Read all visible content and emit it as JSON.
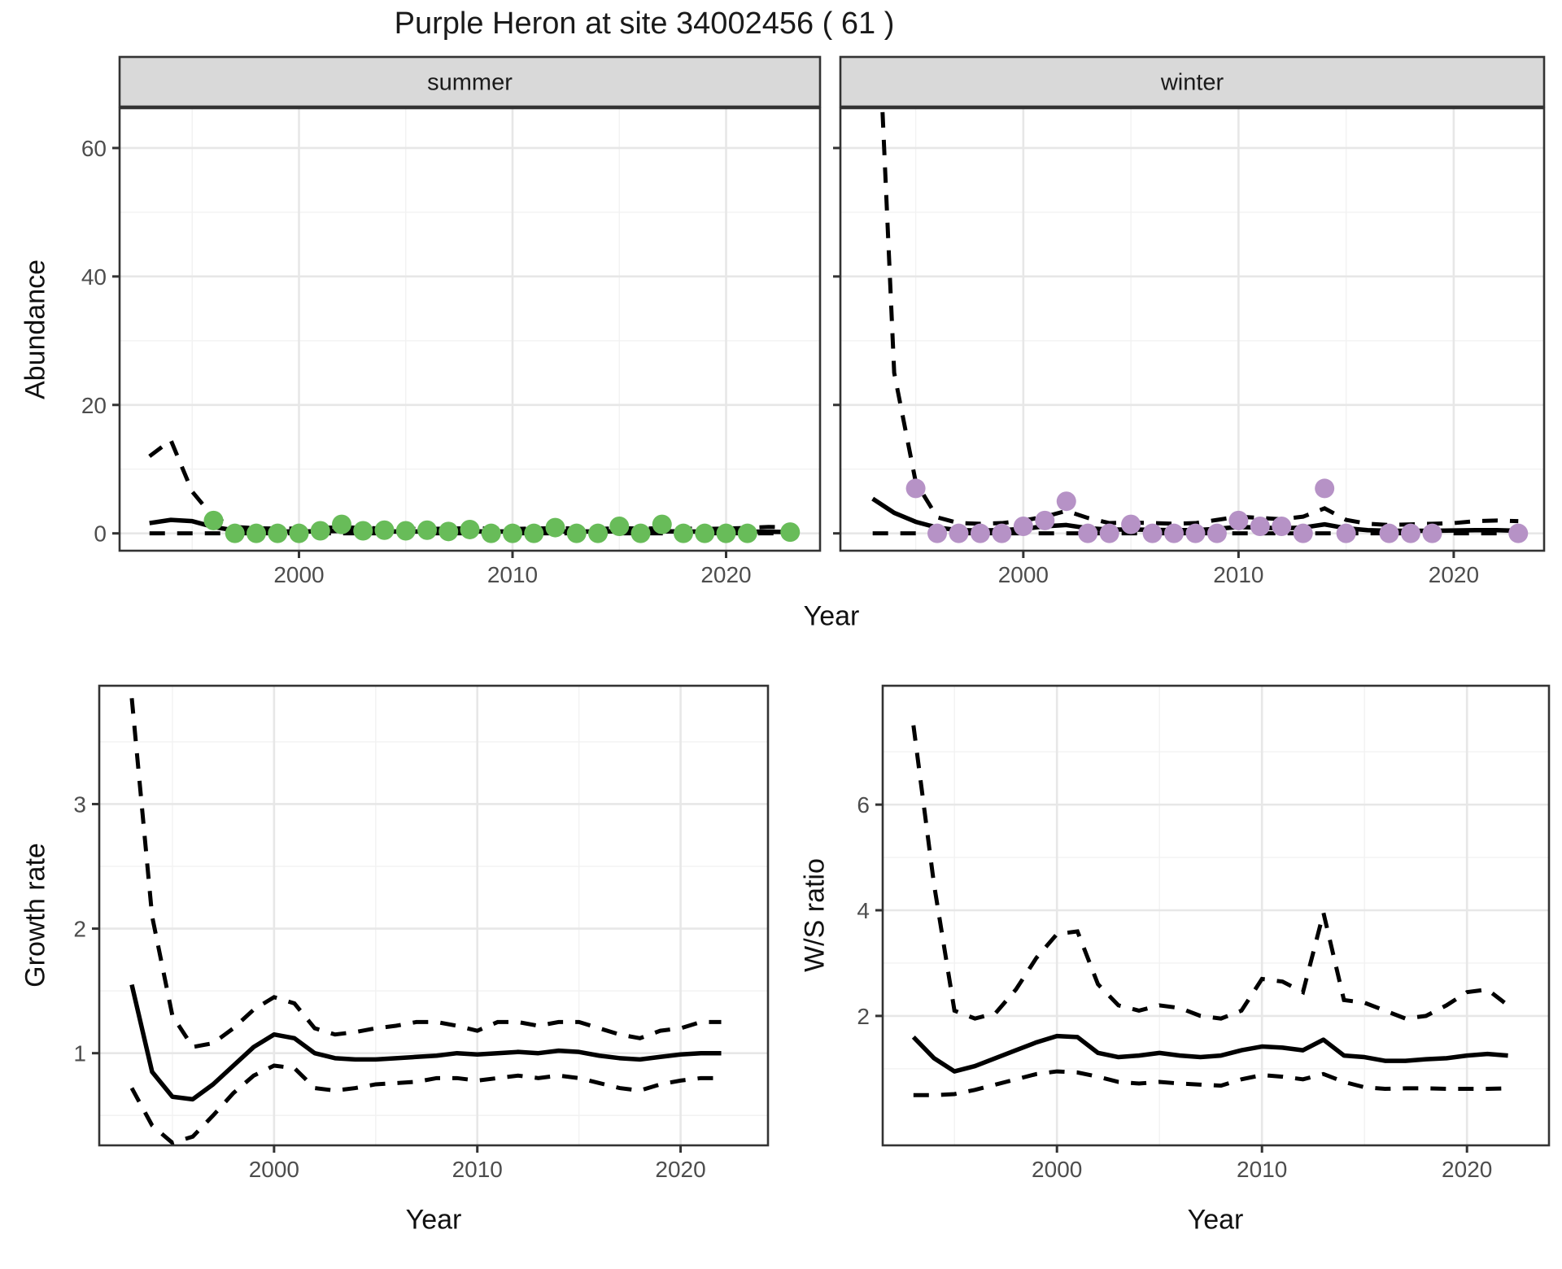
{
  "title": "Purple Heron at site 34002456 ( 61 )",
  "axis_titles": {
    "abundance_y": "Abundance",
    "top_x": "Year",
    "growth_y": "Growth rate",
    "growth_x": "Year",
    "ws_y": "W/S ratio",
    "ws_x": "Year"
  },
  "colors": {
    "summer_point": "#68bc59",
    "winter_point": "#b692c6",
    "line": "#000000",
    "strip_bg": "#d9d9d9",
    "panel_border": "#333333",
    "grid_major": "#e7e7e7",
    "grid_minor": "#f2f2f2",
    "tick_text": "#4d4d4d",
    "panel_bg": "#ffffff"
  },
  "chart_data": {
    "type": "line",
    "title": "Purple Heron at site 34002456 ( 61 )",
    "note": "Four panels: faceted abundance (summer/winter) with observed points, model fit (solid) and dashed 95% CI; growth rate panel; winter/summer ratio panel. Grid on, no legend.",
    "panels": [
      {
        "id": "summer",
        "strip_label": "summer",
        "ylabel": "Abundance",
        "xlim": [
          1991.6,
          2024.4
        ],
        "ylim": [
          -2.7,
          66.2
        ],
        "xticks": [
          2000,
          2010,
          2020
        ],
        "xminor": [
          1995,
          2005,
          2015
        ],
        "yticks": [
          0,
          20,
          40,
          60
        ],
        "yminor": [
          10,
          30,
          50
        ],
        "show_y_tick_labels": true,
        "point_color": "#68bc59",
        "years": [
          1993,
          1994,
          1995,
          1996,
          1997,
          1998,
          1999,
          2000,
          2001,
          2002,
          2003,
          2004,
          2005,
          2006,
          2007,
          2008,
          2009,
          2010,
          2011,
          2012,
          2013,
          2014,
          2015,
          2016,
          2017,
          2018,
          2019,
          2020,
          2021,
          2022,
          2023
        ],
        "fit": [
          1.6,
          2.1,
          1.9,
          1.0,
          0.45,
          0.3,
          0.3,
          0.3,
          0.32,
          0.38,
          0.32,
          0.3,
          0.3,
          0.3,
          0.3,
          0.32,
          0.3,
          0.3,
          0.3,
          0.32,
          0.3,
          0.3,
          0.32,
          0.3,
          0.32,
          0.3,
          0.28,
          0.28,
          0.28,
          0.25,
          0.22
        ],
        "upper": [
          12,
          14.5,
          6.5,
          2.5,
          1.0,
          0.8,
          0.75,
          0.75,
          0.85,
          0.95,
          0.85,
          0.75,
          0.7,
          0.7,
          0.75,
          0.8,
          0.75,
          0.7,
          0.75,
          0.8,
          0.75,
          0.7,
          0.8,
          0.75,
          0.8,
          0.75,
          0.7,
          0.75,
          0.85,
          1.0,
          0.95
        ],
        "lower": [
          0,
          0,
          0,
          0,
          0,
          0,
          0,
          0,
          0,
          0,
          0,
          0,
          0,
          0,
          0,
          0,
          0,
          0,
          0,
          0,
          0,
          0,
          0,
          0,
          0,
          0,
          0,
          0,
          0,
          0,
          0
        ],
        "obs": [
          null,
          null,
          null,
          2,
          0,
          0,
          0,
          0,
          0.4,
          1.4,
          0.4,
          0.5,
          0.4,
          0.5,
          0.3,
          0.6,
          0,
          0,
          0,
          0.9,
          0,
          0,
          1.1,
          0,
          1.4,
          0,
          0,
          0,
          0,
          null,
          0.2
        ]
      },
      {
        "id": "winter",
        "strip_label": "winter",
        "ylabel": "Abundance",
        "xlim": [
          1991.5,
          2024.2
        ],
        "ylim": [
          -2.7,
          66.2
        ],
        "xticks": [
          2000,
          2010,
          2020
        ],
        "xminor": [
          1995,
          2005,
          2015
        ],
        "yticks": [
          0,
          20,
          40,
          60
        ],
        "yminor": [
          10,
          30,
          50
        ],
        "show_y_tick_labels": false,
        "point_color": "#b692c6",
        "years": [
          1993,
          1994,
          1995,
          1996,
          1997,
          1998,
          1999,
          2000,
          2001,
          2002,
          2003,
          2004,
          2005,
          2006,
          2007,
          2008,
          2009,
          2010,
          2011,
          2012,
          2013,
          2014,
          2015,
          2016,
          2017,
          2018,
          2019,
          2020,
          2021,
          2022,
          2023
        ],
        "fit": [
          5.4,
          3.2,
          1.8,
          0.9,
          0.5,
          0.45,
          0.5,
          0.7,
          1.1,
          1.3,
          0.8,
          0.6,
          0.6,
          0.55,
          0.5,
          0.5,
          0.7,
          1.0,
          0.9,
          0.8,
          0.9,
          1.4,
          0.8,
          0.5,
          0.4,
          0.4,
          0.4,
          0.45,
          0.5,
          0.5,
          0.4
        ],
        "upper": [
          100,
          25,
          8,
          2.5,
          1.6,
          1.5,
          1.6,
          2.0,
          2.6,
          3.5,
          2.4,
          1.6,
          1.7,
          1.6,
          1.5,
          1.6,
          2.1,
          2.6,
          2.4,
          2.2,
          2.6,
          3.9,
          2.1,
          1.5,
          1.3,
          1.4,
          1.5,
          1.6,
          1.9,
          2.0,
          1.9
        ],
        "lower": [
          0,
          0,
          0,
          0,
          0,
          0,
          0,
          0,
          0,
          0,
          0,
          0,
          0,
          0,
          0,
          0,
          0,
          0,
          0,
          0,
          0,
          0,
          0,
          0,
          0,
          0,
          0,
          0,
          0,
          0,
          0
        ],
        "obs": [
          null,
          null,
          7,
          0,
          0,
          0,
          0,
          1.1,
          2,
          5,
          0,
          0,
          1.4,
          0,
          0,
          0,
          0,
          2,
          1.1,
          1.1,
          0,
          7,
          0,
          null,
          0,
          0,
          0,
          null,
          null,
          null,
          0
        ]
      },
      {
        "id": "growth",
        "strip_label": null,
        "ylabel": "Growth rate",
        "xlim": [
          1991.4,
          2024.3
        ],
        "ylim": [
          0.26,
          3.95
        ],
        "xticks": [
          2000,
          2010,
          2020
        ],
        "xminor": [
          1995,
          2005,
          2015
        ],
        "yticks": [
          1,
          2,
          3
        ],
        "yminor": [
          0.5,
          1.5,
          2.5,
          3.5
        ],
        "show_y_tick_labels": true,
        "point_color": null,
        "years": [
          1993,
          1994,
          1995,
          1996,
          1997,
          1998,
          1999,
          2000,
          2001,
          2002,
          2003,
          2004,
          2005,
          2006,
          2007,
          2008,
          2009,
          2010,
          2011,
          2012,
          2013,
          2014,
          2015,
          2016,
          2017,
          2018,
          2019,
          2020,
          2021,
          2022
        ],
        "fit": [
          1.55,
          0.85,
          0.65,
          0.63,
          0.75,
          0.9,
          1.05,
          1.15,
          1.12,
          1.0,
          0.96,
          0.95,
          0.95,
          0.96,
          0.97,
          0.98,
          1.0,
          0.99,
          1.0,
          1.01,
          1.0,
          1.02,
          1.01,
          0.98,
          0.96,
          0.95,
          0.97,
          0.99,
          1.0,
          1.0
        ],
        "upper": [
          3.85,
          2.1,
          1.3,
          1.05,
          1.08,
          1.2,
          1.35,
          1.45,
          1.4,
          1.2,
          1.15,
          1.17,
          1.2,
          1.22,
          1.25,
          1.25,
          1.22,
          1.18,
          1.25,
          1.25,
          1.22,
          1.25,
          1.25,
          1.2,
          1.15,
          1.12,
          1.18,
          1.2,
          1.25,
          1.25
        ],
        "lower": [
          0.72,
          0.42,
          0.28,
          0.33,
          0.5,
          0.68,
          0.82,
          0.9,
          0.88,
          0.72,
          0.7,
          0.72,
          0.75,
          0.76,
          0.77,
          0.8,
          0.8,
          0.78,
          0.8,
          0.82,
          0.8,
          0.82,
          0.8,
          0.76,
          0.72,
          0.7,
          0.75,
          0.78,
          0.8,
          0.8
        ],
        "obs": null
      },
      {
        "id": "ws",
        "strip_label": null,
        "ylabel": "W/S ratio",
        "xlim": [
          1991.5,
          2024.0
        ],
        "ylim": [
          -0.45,
          8.25
        ],
        "xticks": [
          2000,
          2010,
          2020
        ],
        "xminor": [
          1995,
          2005,
          2015
        ],
        "yticks": [
          2,
          4,
          6
        ],
        "yminor": [
          1,
          3,
          5,
          7
        ],
        "show_y_tick_labels": true,
        "point_color": null,
        "years": [
          1993,
          1994,
          1995,
          1996,
          1997,
          1998,
          1999,
          2000,
          2001,
          2002,
          2003,
          2004,
          2005,
          2006,
          2007,
          2008,
          2009,
          2010,
          2011,
          2012,
          2013,
          2014,
          2015,
          2016,
          2017,
          2018,
          2019,
          2020,
          2021,
          2022
        ],
        "fit": [
          1.6,
          1.2,
          0.95,
          1.05,
          1.2,
          1.35,
          1.5,
          1.62,
          1.6,
          1.3,
          1.22,
          1.25,
          1.3,
          1.25,
          1.22,
          1.25,
          1.35,
          1.42,
          1.4,
          1.35,
          1.55,
          1.25,
          1.22,
          1.15,
          1.15,
          1.18,
          1.2,
          1.25,
          1.28,
          1.25
        ],
        "upper": [
          7.5,
          4.5,
          2.1,
          1.95,
          2.05,
          2.5,
          3.1,
          3.55,
          3.6,
          2.6,
          2.2,
          2.1,
          2.2,
          2.15,
          2.0,
          1.95,
          2.1,
          2.7,
          2.65,
          2.45,
          3.95,
          2.3,
          2.25,
          2.1,
          1.95,
          2.0,
          2.2,
          2.45,
          2.5,
          2.2
        ],
        "lower": [
          0.5,
          0.5,
          0.52,
          0.6,
          0.7,
          0.8,
          0.9,
          0.95,
          0.93,
          0.85,
          0.75,
          0.72,
          0.75,
          0.72,
          0.7,
          0.68,
          0.8,
          0.88,
          0.85,
          0.8,
          0.9,
          0.75,
          0.65,
          0.62,
          0.63,
          0.63,
          0.62,
          0.62,
          0.62,
          0.63
        ],
        "obs": null
      }
    ]
  }
}
